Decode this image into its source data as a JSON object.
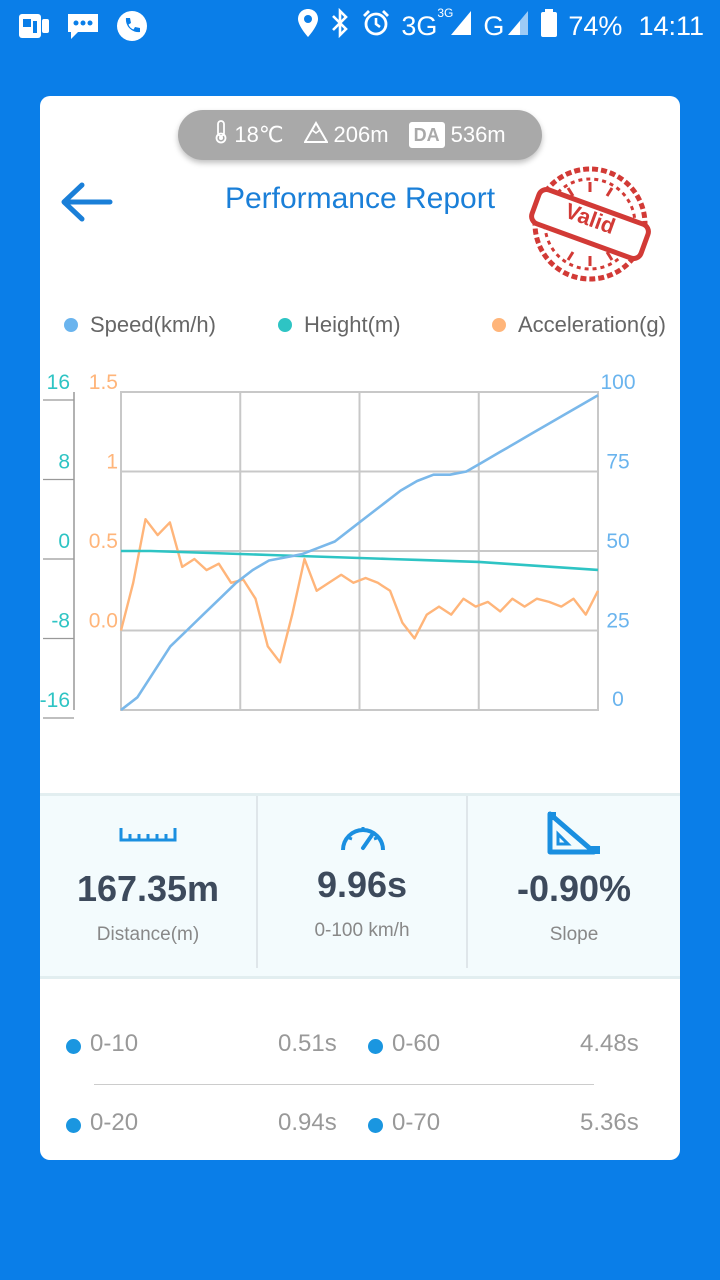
{
  "status_bar": {
    "network1": "3G",
    "network1_sup": "3G",
    "network2": "G",
    "battery": "74%",
    "time": "14:11"
  },
  "env": {
    "temperature": "18℃",
    "altitude": "206m",
    "da_label": "DA",
    "density_altitude": "536m"
  },
  "header": {
    "title": "Performance Report",
    "stamp_text": "Valid"
  },
  "legend": {
    "speed": "Speed(km/h)",
    "height": "Height(m)",
    "acceleration": "Acceleration(g)"
  },
  "colors": {
    "speed": "#7ab8ea",
    "height": "#2ec4c4",
    "acceleration": "#ffb57a",
    "accent": "#1a7fd8",
    "stamp": "#d23a36"
  },
  "chart_data": {
    "type": "line",
    "axes": {
      "height_ticks": [
        "16",
        "8",
        "0",
        "-8",
        "-16"
      ],
      "acceleration_ticks": [
        "1.5",
        "1",
        "0.5",
        "0.0"
      ],
      "speed_ticks": [
        "100",
        "75",
        "50",
        "25",
        "0"
      ],
      "height_range": [
        -16,
        16
      ],
      "acceleration_range": [
        -0.5,
        1.5
      ],
      "speed_range": [
        0,
        100
      ]
    },
    "grid": true,
    "series": [
      {
        "name": "Speed(km/h)",
        "axis": "speed",
        "values": [
          0,
          4,
          12,
          20,
          25,
          30,
          35,
          40,
          44,
          47,
          48,
          49,
          51,
          53,
          57,
          61,
          65,
          69,
          72,
          74,
          74,
          75,
          78,
          81,
          84,
          87,
          90,
          93,
          96,
          99
        ]
      },
      {
        "name": "Height(m)",
        "axis": "height",
        "values": [
          0,
          0,
          -0.1,
          -0.2,
          -0.3,
          -0.4,
          -0.5,
          -0.6,
          -0.7,
          -0.8,
          -0.9,
          -1.0,
          -1.1,
          -1.3,
          -1.5,
          -1.7,
          -1.9
        ]
      },
      {
        "name": "Acceleration(g)",
        "axis": "acceleration",
        "values": [
          0.0,
          0.3,
          0.7,
          0.6,
          0.68,
          0.4,
          0.45,
          0.38,
          0.42,
          0.3,
          0.32,
          0.2,
          -0.1,
          -0.2,
          0.1,
          0.45,
          0.25,
          0.3,
          0.35,
          0.3,
          0.33,
          0.3,
          0.25,
          0.05,
          -0.05,
          0.1,
          0.15,
          0.1,
          0.2,
          0.15,
          0.18,
          0.12,
          0.2,
          0.15,
          0.2,
          0.18,
          0.15,
          0.2,
          0.1,
          0.25
        ]
      }
    ]
  },
  "metrics": [
    {
      "value": "167.35m",
      "label": "Distance(m)",
      "icon": "ruler-icon"
    },
    {
      "value": "9.96s",
      "label": "0-100 km/h",
      "icon": "speedometer-icon"
    },
    {
      "value": "-0.90%",
      "label": "Slope",
      "icon": "slope-icon"
    }
  ],
  "times": [
    {
      "range": "0-10",
      "time": "0.51s"
    },
    {
      "range": "0-60",
      "time": "4.48s"
    },
    {
      "range": "0-20",
      "time": "0.94s"
    },
    {
      "range": "0-70",
      "time": "5.36s"
    }
  ]
}
